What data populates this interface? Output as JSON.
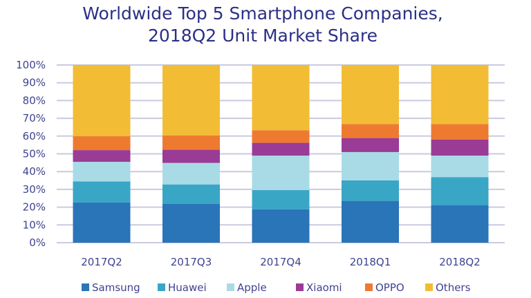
{
  "chart_data": {
    "type": "bar",
    "stacked": true,
    "title": [
      "Worldwide Top 5 Smartphone Companies,",
      "2018Q2 Unit Market Share"
    ],
    "xlabel": "",
    "ylabel": "",
    "ylim": [
      0,
      100
    ],
    "yticks": [
      "0%",
      "10%",
      "20%",
      "30%",
      "40%",
      "50%",
      "60%",
      "70%",
      "80%",
      "90%",
      "100%"
    ],
    "grid": true,
    "legend_position": "bottom",
    "categories": [
      "2017Q2",
      "2017Q3",
      "2017Q4",
      "2018Q1",
      "2018Q2"
    ],
    "series": [
      {
        "name": "Samsung",
        "color": "#2a74b8",
        "values": [
          22.7,
          21.8,
          18.8,
          23.5,
          21.0
        ]
      },
      {
        "name": "Huawei",
        "color": "#39a6c6",
        "values": [
          11.8,
          11.0,
          10.8,
          11.6,
          15.9
        ]
      },
      {
        "name": "Apple",
        "color": "#a8dbe6",
        "values": [
          11.0,
          12.1,
          19.4,
          15.9,
          12.1
        ]
      },
      {
        "name": "Xiaomi",
        "color": "#9a3b96",
        "values": [
          6.6,
          7.4,
          7.2,
          7.9,
          9.1
        ]
      },
      {
        "name": "OPPO",
        "color": "#ee7a30",
        "values": [
          7.8,
          8.0,
          7.1,
          7.9,
          8.7
        ]
      },
      {
        "name": "Others",
        "color": "#f2bd34",
        "values": [
          40.1,
          39.7,
          36.7,
          33.2,
          33.2
        ]
      }
    ]
  }
}
